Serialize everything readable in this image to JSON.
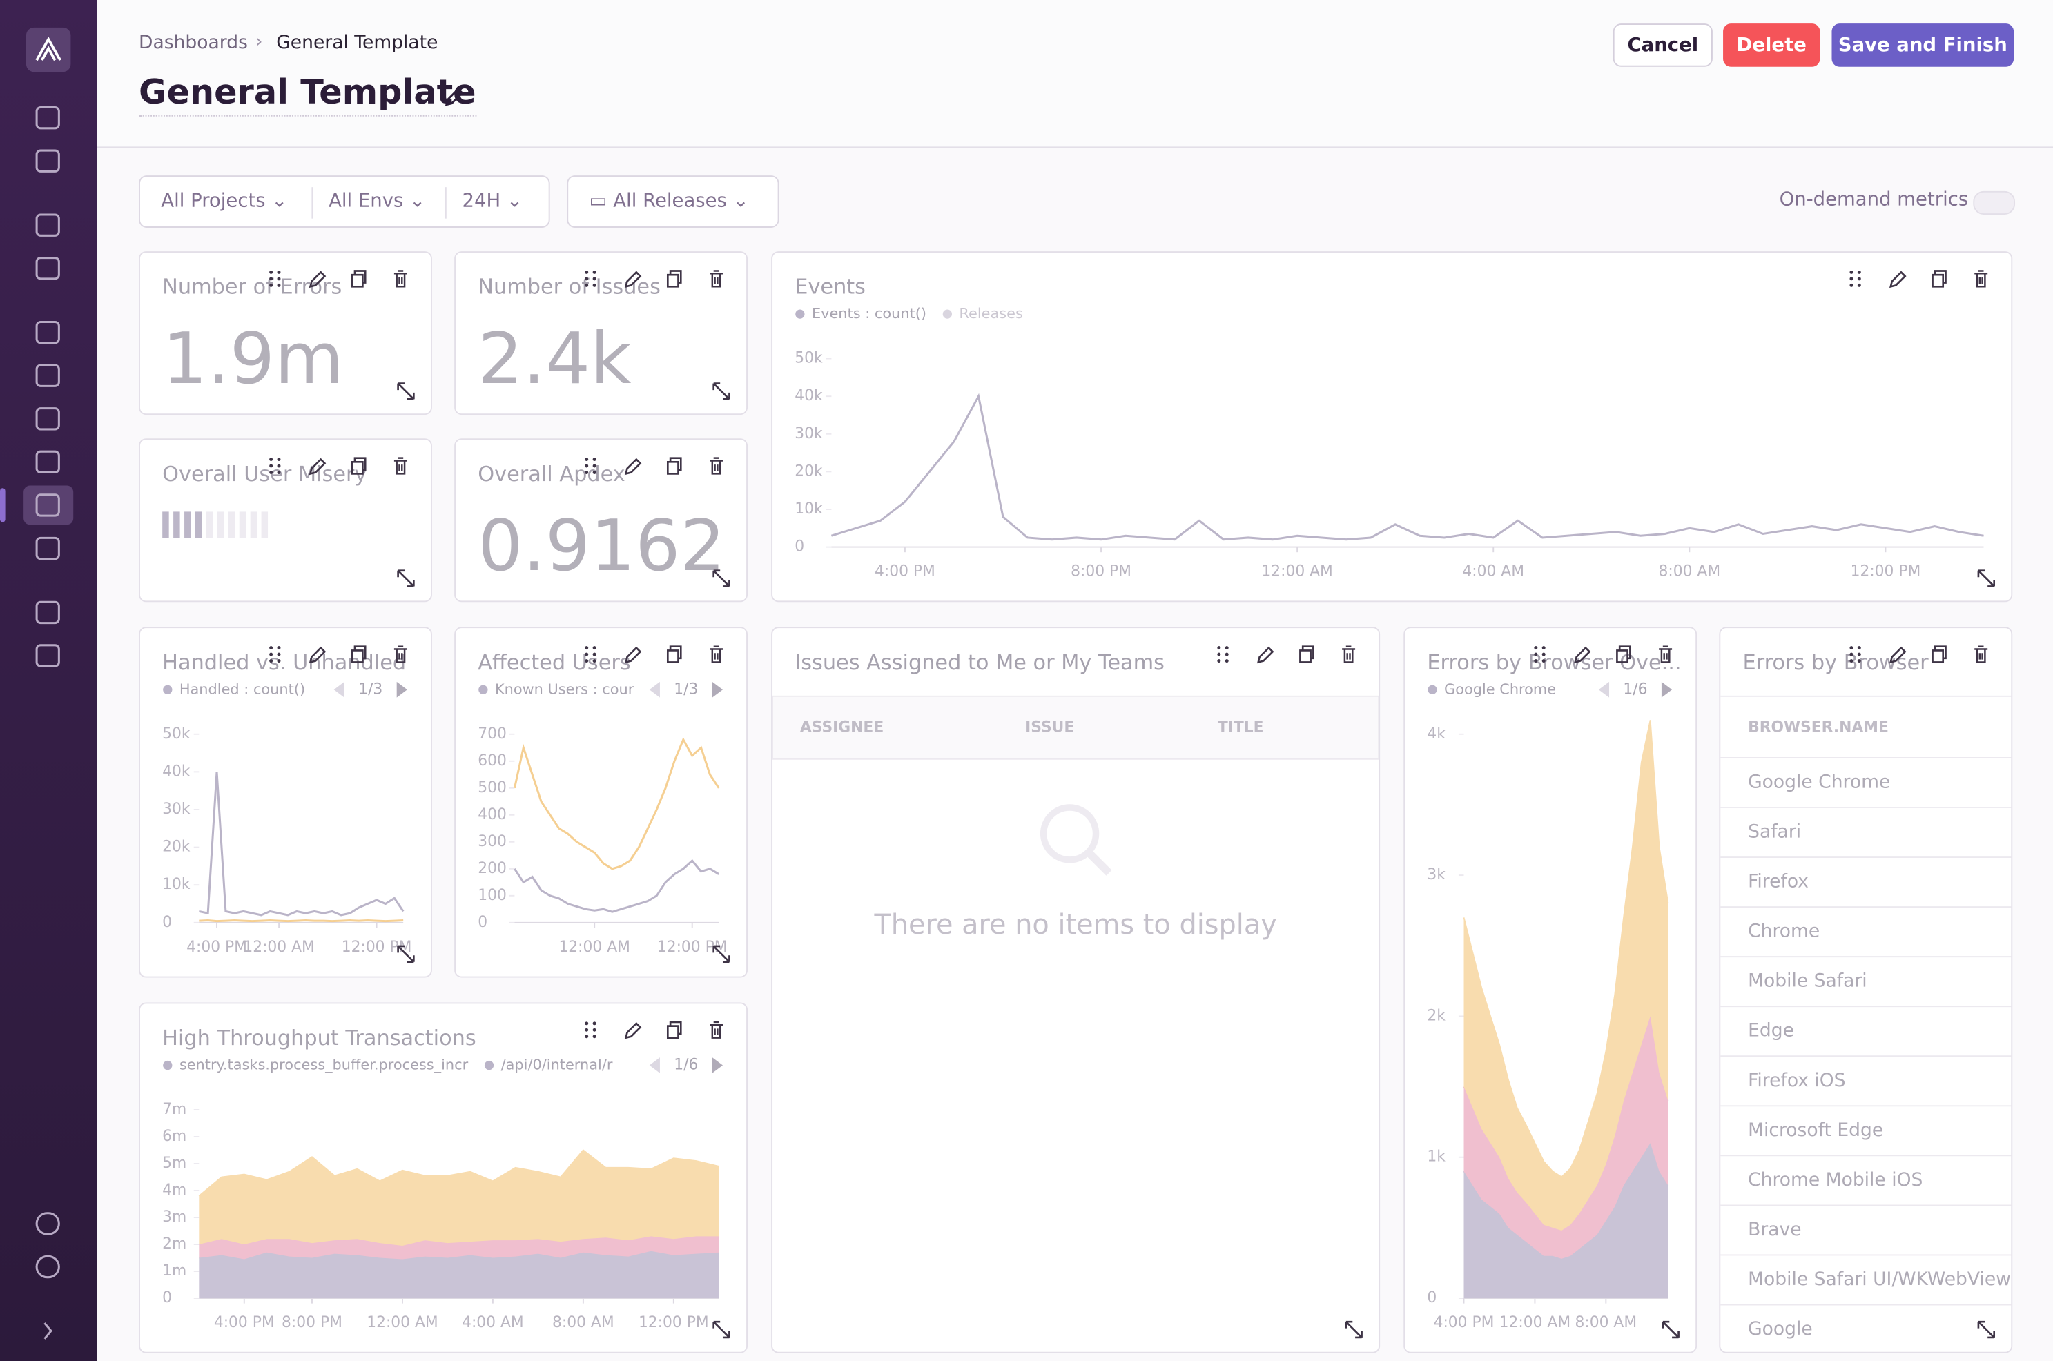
{
  "header": {
    "breadcrumbs": [
      "Dashboards",
      "General Template"
    ],
    "title": "General Template",
    "buttons": [
      "Cancel",
      "Delete",
      "Save and Finish"
    ]
  },
  "filters": {
    "projects": "All Projects",
    "envs": "All Envs",
    "period": "24H",
    "releases": "All Releases",
    "on_demand": "On-demand metrics"
  },
  "widgets": [
    {
      "title": "Number of Errors",
      "kind": "big_number",
      "value": "1.9m"
    },
    {
      "title": "Number of Issues",
      "kind": "big_number",
      "value": "2.4k"
    },
    {
      "title": "Events",
      "kind": "chart",
      "extra_legend": "Releases",
      "chart": {
        "type": "line",
        "categories": [
          null,
          null,
          null,
          "4:00 PM",
          null,
          null,
          null,
          null,
          null,
          null,
          null,
          "8:00 PM",
          null,
          null,
          null,
          null,
          null,
          null,
          null,
          "12:00 AM",
          null,
          null,
          null,
          null,
          null,
          null,
          null,
          "4:00 AM",
          null,
          null,
          null,
          null,
          null,
          null,
          null,
          "8:00 AM",
          null,
          null,
          null,
          null,
          null,
          null,
          null,
          "12:00 PM",
          null,
          null,
          null,
          null
        ],
        "series": [
          {
            "name": "Events : count()",
            "color": "#bab4c8",
            "values": [
              3000,
              5000,
              7000,
              12000,
              20000,
              28000,
              40000,
              8000,
              2500,
              2000,
              2500,
              2000,
              3000,
              2500,
              2000,
              7000,
              2000,
              2500,
              2000,
              3000,
              2500,
              2000,
              2500,
              6000,
              3000,
              2500,
              3500,
              2500,
              7000,
              2500,
              3000,
              3500,
              4000,
              3000,
              3500,
              5000,
              4000,
              6000,
              3500,
              4500,
              5500,
              4500,
              6000,
              5000,
              4000,
              5500,
              4000,
              3000
            ]
          }
        ],
        "ylim": [
          0,
          50000
        ],
        "yticks": [
          0,
          {
            "value": 10000,
            "label": "10k"
          },
          {
            "value": 20000,
            "label": "20k"
          },
          {
            "value": 30000,
            "label": "30k"
          },
          {
            "value": 40000,
            "label": "40k"
          },
          {
            "value": 50000,
            "label": "50k"
          }
        ]
      }
    },
    {
      "title": "Overall User Misery",
      "kind": "misery"
    },
    {
      "title": "Overall Apdex",
      "kind": "big_number",
      "value": "0.9162"
    },
    {
      "title": "Handled vs. Unhandled",
      "kind": "chart",
      "page": "1/3",
      "chart": {
        "type": "line",
        "categories": [
          null,
          null,
          "4:00 PM",
          null,
          null,
          null,
          null,
          null,
          null,
          "12:00 AM",
          null,
          null,
          null,
          null,
          null,
          null,
          null,
          null,
          null,
          null,
          "12:00 PM",
          null,
          null,
          null
        ],
        "series": [
          {
            "name": "Handled : count()",
            "color": "#bab4c8",
            "values": [
              3000,
              2500,
              40000,
              3000,
              2500,
              3000,
              2500,
              2000,
              3000,
              2500,
              2000,
              3000,
              2500,
              3000,
              2500,
              3000,
              2000,
              2500,
              4000,
              5000,
              6000,
              5000,
              6500,
              3000
            ]
          },
          {
            "color": "#f5cf92",
            "values": [
              500,
              600,
              400,
              500,
              600,
              500,
              400,
              500,
              600,
              500,
              400,
              500,
              600,
              500,
              500,
              400,
              500,
              600,
              500,
              600,
              500,
              400,
              500,
              600
            ]
          }
        ],
        "ylim": [
          0,
          50000
        ],
        "yticks": [
          0,
          {
            "value": 10000,
            "label": "10k"
          },
          {
            "value": 20000,
            "label": "20k"
          },
          {
            "value": 30000,
            "label": "30k"
          },
          {
            "value": 40000,
            "label": "40k"
          },
          {
            "value": 50000,
            "label": "50k"
          }
        ]
      }
    },
    {
      "title": "Affected Users",
      "kind": "chart",
      "page": "1/3",
      "chart": {
        "type": "line",
        "categories": [
          null,
          null,
          null,
          null,
          null,
          null,
          null,
          null,
          null,
          "12:00 AM",
          null,
          null,
          null,
          null,
          null,
          null,
          null,
          null,
          null,
          null,
          "12:00 PM",
          null,
          null,
          null
        ],
        "series": [
          {
            "name": "Known Users : cour",
            "color": "#bab4c8",
            "values": [
              200,
              150,
              170,
              120,
              100,
              90,
              70,
              60,
              50,
              45,
              50,
              40,
              50,
              60,
              70,
              80,
              100,
              150,
              180,
              200,
              230,
              190,
              200,
              180
            ]
          },
          {
            "color": "#f5cf92",
            "values": [
              500,
              650,
              550,
              450,
              400,
              350,
              330,
              300,
              280,
              260,
              220,
              200,
              210,
              230,
              280,
              350,
              420,
              500,
              600,
              680,
              620,
              650,
              550,
              500
            ]
          }
        ],
        "ylim": [
          0,
          700
        ],
        "yticks": [
          0,
          100,
          200,
          300,
          400,
          500,
          600,
          700
        ]
      }
    },
    {
      "title": "Issues Assigned to Me or My Teams",
      "kind": "table",
      "columns": [
        "ASSIGNEE",
        "ISSUE",
        "TITLE"
      ],
      "empty": "There are no items to display"
    },
    {
      "title": "Errors by Browser Ove...",
      "kind": "chart",
      "page": "1/6",
      "chart": {
        "type": "area",
        "categories": [
          "4:00 PM",
          null,
          null,
          null,
          null,
          null,
          null,
          null,
          "12:00 AM",
          null,
          null,
          null,
          null,
          null,
          null,
          null,
          "8:00 AM",
          null,
          null,
          null,
          null,
          null,
          null,
          null
        ],
        "series": [
          {
            "name": "Google Chrome",
            "color": "#c9c3d6",
            "values": [
              900,
              800,
              700,
              650,
              600,
              500,
              450,
              400,
              350,
              300,
              300,
              280,
              300,
              350,
              400,
              450,
              550,
              650,
              800,
              900,
              1000,
              1100,
              900,
              800
            ]
          },
          {
            "color": "#f0bfcf",
            "values": [
              600,
              550,
              500,
              450,
              400,
              350,
              300,
              280,
              250,
              220,
              200,
              200,
              220,
              250,
              300,
              350,
              400,
              500,
              600,
              700,
              800,
              900,
              700,
              600
            ]
          },
          {
            "color": "#f8dcae",
            "values": [
              1200,
              1100,
              1000,
              900,
              800,
              700,
              600,
              550,
              500,
              450,
              400,
              380,
              400,
              450,
              550,
              650,
              800,
              1000,
              1300,
              1600,
              2000,
              2100,
              1600,
              1400
            ]
          }
        ],
        "ylim": [
          0,
          4000
        ],
        "yticks": [
          0,
          {
            "value": 1000,
            "label": "1k"
          },
          {
            "value": 2000,
            "label": "2k"
          },
          {
            "value": 3000,
            "label": "3k"
          },
          {
            "value": 4000,
            "label": "4k"
          }
        ]
      }
    },
    {
      "title": "Errors by Browser",
      "kind": "list",
      "column": "BROWSER.NAME",
      "rows": [
        "Google Chrome",
        "Safari",
        "Firefox",
        "Chrome",
        "Mobile Safari",
        "Edge",
        "Firefox iOS",
        "Microsoft Edge",
        "Chrome Mobile iOS",
        "Brave",
        "Mobile Safari UI/WKWebView",
        "Google"
      ]
    },
    {
      "title": "High Throughput Transactions",
      "kind": "chart",
      "page": "1/6",
      "chart": {
        "type": "area",
        "categories": [
          null,
          null,
          "4:00 PM",
          null,
          null,
          "8:00 PM",
          null,
          null,
          null,
          "12:00 AM",
          null,
          null,
          null,
          "4:00 AM",
          null,
          null,
          null,
          "8:00 AM",
          null,
          null,
          null,
          "12:00 PM",
          null,
          null
        ],
        "series": [
          {
            "name": "sentry.tasks.process_buffer.process_incr",
            "color": "#c9c3d6",
            "values": [
              1500000,
              1600000,
              1450000,
              1700000,
              1550000,
              1500000,
              1650000,
              1600000,
              1500000,
              1450000,
              1550000,
              1500000,
              1600000,
              1500000,
              1550000,
              1650000,
              1500000,
              1700000,
              1600000,
              1550000,
              1750000,
              1600000,
              1650000,
              1700000
            ]
          },
          {
            "name": "/api/0/internal/r",
            "color": "#f0bfcf",
            "values": [
              500000,
              600000,
              550000,
              500000,
              650000,
              550000,
              500000,
              600000,
              550000,
              500000,
              600000,
              550000,
              500000,
              650000,
              600000,
              550000,
              600000,
              500000,
              650000,
              600000,
              550000,
              600000,
              650000,
              600000
            ]
          },
          {
            "color": "#f8dcae",
            "values": [
              1800000,
              2300000,
              2600000,
              2200000,
              2500000,
              3200000,
              2400000,
              2600000,
              2300000,
              2800000,
              2400000,
              2500000,
              2600000,
              2200000,
              2700000,
              2500000,
              2400000,
              3300000,
              2600000,
              2700000,
              2500000,
              3000000,
              2800000,
              2600000
            ]
          }
        ],
        "ylim": [
          0,
          7000000
        ],
        "yticks": [
          0,
          {
            "value": 1000000,
            "label": "1m"
          },
          {
            "value": 2000000,
            "label": "2m"
          },
          {
            "value": 3000000,
            "label": "3m"
          },
          {
            "value": 4000000,
            "label": "4m"
          },
          {
            "value": 5000000,
            "label": "5m"
          },
          {
            "value": 6000000,
            "label": "6m"
          },
          {
            "value": 7000000,
            "label": "7m"
          }
        ]
      }
    }
  ]
}
